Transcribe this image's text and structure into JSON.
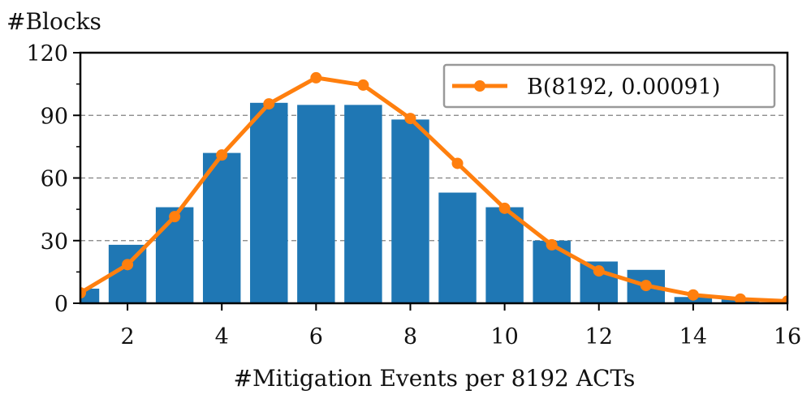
{
  "chart_data": {
    "type": "bar",
    "title": "",
    "ylabel": "#Blocks",
    "xlabel": "#Mitigation Events per 8192 ACTs",
    "xlim": [
      1,
      16
    ],
    "ylim": [
      0,
      120
    ],
    "x_ticks": [
      2,
      4,
      6,
      8,
      10,
      12,
      14,
      16
    ],
    "y_ticks": [
      0,
      30,
      60,
      90,
      120
    ],
    "y_minor_ticks": [
      15,
      45,
      75,
      105
    ],
    "grid": {
      "y": true,
      "style": "dashed"
    },
    "bars": {
      "x": [
        1,
        2,
        3,
        4,
        5,
        6,
        7,
        8,
        9,
        10,
        11,
        12,
        13,
        14,
        15,
        16
      ],
      "values": [
        7,
        28,
        46,
        72,
        96,
        95,
        95,
        88,
        53,
        46,
        30,
        20,
        16,
        3,
        2,
        0
      ],
      "color": "#1f77b4"
    },
    "series": [
      {
        "name": "B(8192, 0.00091)",
        "type": "line",
        "marker": "circle",
        "color": "#ff7f0e",
        "x": [
          1,
          2,
          3,
          4,
          5,
          6,
          7,
          8,
          9,
          10,
          11,
          12,
          13,
          14,
          15,
          16
        ],
        "values": [
          5,
          18.5,
          41.5,
          71,
          95.5,
          108,
          104.5,
          88.5,
          67,
          45.5,
          28,
          15.5,
          8.5,
          4,
          2,
          1
        ]
      }
    ],
    "legend_position": "top-right"
  }
}
